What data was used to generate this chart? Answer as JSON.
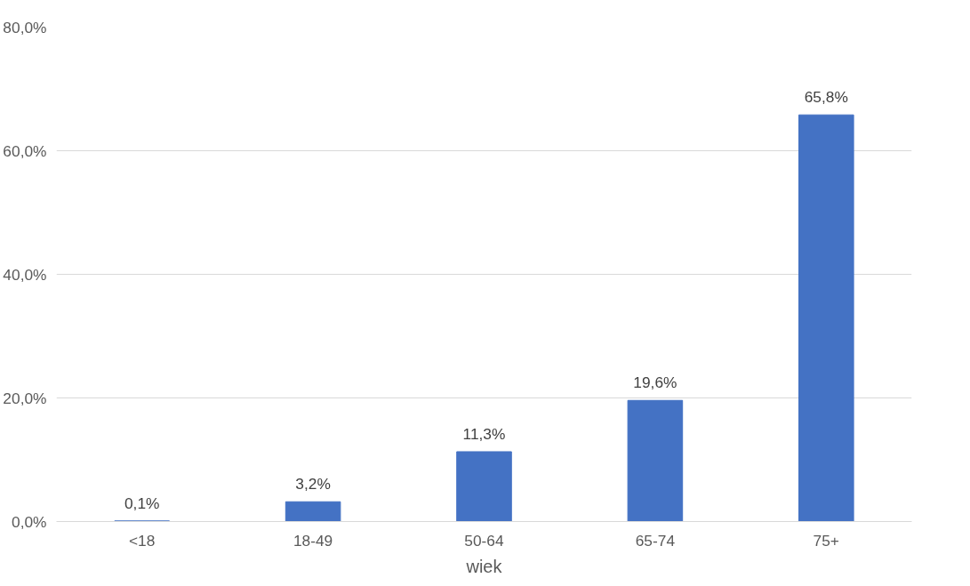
{
  "chart_data": {
    "type": "bar",
    "categories": [
      "<18",
      "18-49",
      "50-64",
      "65-74",
      "75+"
    ],
    "values": [
      0.1,
      3.2,
      11.3,
      19.6,
      65.8
    ],
    "value_labels": [
      "0,1%",
      "3,2%",
      "11,3%",
      "19,6%",
      "65,8%"
    ],
    "color": "#4472c4",
    "xlabel": "wiek",
    "ylim": [
      0,
      80
    ],
    "yticks": [
      {
        "value": 0,
        "label": "0,0%"
      },
      {
        "value": 20,
        "label": "20,0%"
      },
      {
        "value": 40,
        "label": "40,0%"
      },
      {
        "value": 60,
        "label": "60,0%"
      },
      {
        "value": 80,
        "label": "80,0%"
      }
    ],
    "grid": "y"
  }
}
